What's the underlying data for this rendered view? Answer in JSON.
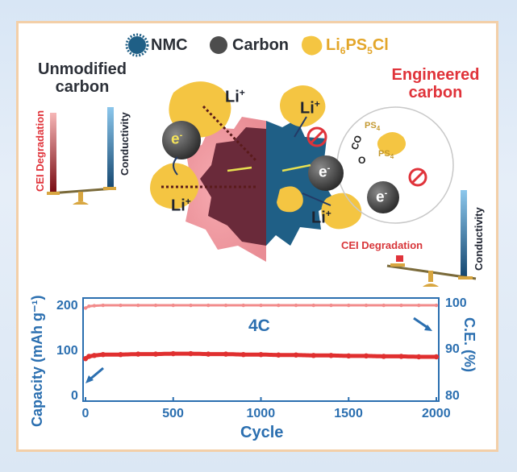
{
  "legend": {
    "nmc": "NMC",
    "carbon": "Carbon",
    "electrolyte_base": "Li",
    "electrolyte_sub1": "6",
    "electrolyte_mid": "PS",
    "electrolyte_sub2": "5",
    "electrolyte_end": "Cl"
  },
  "left": {
    "title_line1": "Unmodified",
    "title_line2": "carbon",
    "bar1_label": "CEI Degradation",
    "bar2_label": "Conductivity"
  },
  "right": {
    "title_line1": "Engineered",
    "title_line2": "carbon",
    "bar1_label": "CEI Degradation",
    "bar2_label": "Conductivity"
  },
  "labels": {
    "li_plus": "Li",
    "plus": "+",
    "electron": "e",
    "minus": "-",
    "ps4": "PS",
    "ps4_sub": "4",
    "co": "CO",
    "o": "O"
  },
  "colors": {
    "nmc": "#1f5f86",
    "carbon": "#4a4a4a",
    "electrolyte": "#f4c542",
    "cei_bar": "#e0333a",
    "conductivity_bar": "#2f7fb8",
    "capacity": "#e02f2f",
    "ce": "#f28b8b",
    "axis": "#2b6fb0"
  },
  "chart_data": {
    "type": "scatter",
    "annotation": "4C",
    "xlabel": "Cycle",
    "ylabel_left": "Capacity (mAh g⁻¹)",
    "ylabel_right": "C.E. (%)",
    "xlim": [
      0,
      2000
    ],
    "ylim_left": [
      0,
      210
    ],
    "ylim_right": [
      80,
      100.5
    ],
    "x_ticks": [
      0,
      500,
      1000,
      1500,
      2000
    ],
    "y_left_ticks": [
      0,
      100,
      200
    ],
    "y_right_ticks": [
      80,
      90,
      100
    ],
    "series": [
      {
        "axis": "left",
        "x": [
          0,
          20,
          50,
          100,
          200,
          300,
          400,
          500,
          600,
          700,
          800,
          900,
          1000,
          1100,
          1200,
          1300,
          1400,
          1500,
          1600,
          1700,
          1800,
          1900,
          2000
        ],
        "values": [
          85,
          90,
          92,
          94,
          94,
          95,
          95,
          96,
          96,
          95,
          95,
          94,
          94,
          93,
          93,
          92,
          92,
          91,
          91,
          90,
          90,
          89,
          89
        ]
      },
      {
        "axis": "right",
        "x": [
          0,
          20,
          50,
          100,
          200,
          300,
          400,
          500,
          600,
          700,
          800,
          900,
          1000,
          1100,
          1200,
          1300,
          1400,
          1500,
          1600,
          1700,
          1800,
          1900,
          2000
        ],
        "values": [
          99.2,
          99.6,
          99.7,
          99.8,
          99.8,
          99.8,
          99.8,
          99.8,
          99.8,
          99.8,
          99.8,
          99.8,
          99.8,
          99.8,
          99.8,
          99.8,
          99.8,
          99.8,
          99.8,
          99.8,
          99.8,
          99.8,
          99.8
        ]
      }
    ]
  }
}
